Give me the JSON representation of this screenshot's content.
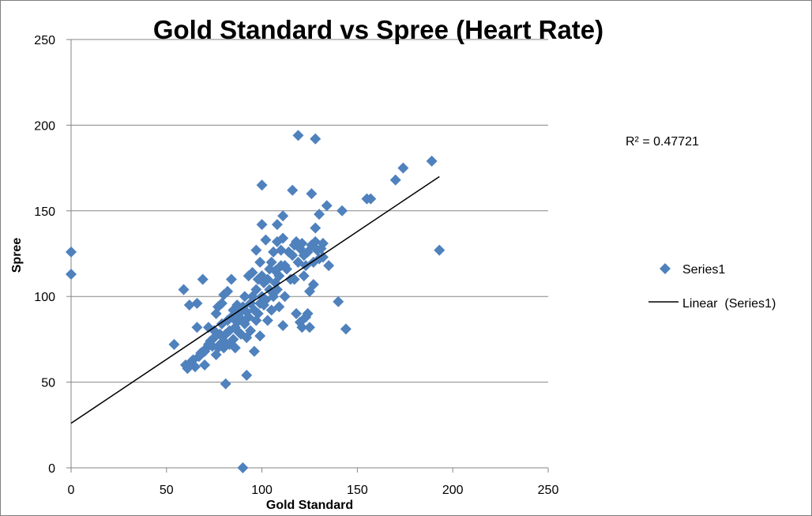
{
  "colors": {
    "point": "#4F81BD",
    "grid": "#868686",
    "axis": "#868686",
    "trendline": "#000000"
  },
  "chart_data": {
    "type": "scatter",
    "title": "Gold Standard vs Spree (Heart Rate)",
    "xlabel": "Gold Standard",
    "ylabel": "Spree",
    "xlim": [
      0,
      250
    ],
    "ylim": [
      0,
      250
    ],
    "xticks": [
      0,
      50,
      100,
      150,
      200,
      250
    ],
    "yticks": [
      0,
      50,
      100,
      150,
      200,
      250
    ],
    "grid": "horizontal-major",
    "legend_position": "right",
    "legend": [
      {
        "name": "Series1",
        "marker": "diamond"
      },
      {
        "name": "Linear  (Series1)",
        "marker": "line"
      }
    ],
    "r_squared_label": "R² = 0.47721",
    "trendline": {
      "type": "linear",
      "x": [
        0,
        193
      ],
      "y": [
        26,
        170
      ]
    },
    "series": [
      {
        "name": "Series1",
        "points": [
          [
            0,
            126
          ],
          [
            0,
            113
          ],
          [
            54,
            72
          ],
          [
            59,
            104
          ],
          [
            60,
            60
          ],
          [
            61,
            58
          ],
          [
            62,
            95
          ],
          [
            63,
            62
          ],
          [
            64,
            63
          ],
          [
            65,
            59
          ],
          [
            66,
            82
          ],
          [
            66,
            96
          ],
          [
            67,
            65
          ],
          [
            68,
            67
          ],
          [
            69,
            110
          ],
          [
            70,
            60
          ],
          [
            70,
            68
          ],
          [
            71,
            70
          ],
          [
            72,
            72
          ],
          [
            72,
            82
          ],
          [
            73,
            74
          ],
          [
            74,
            71
          ],
          [
            75,
            76
          ],
          [
            75,
            80
          ],
          [
            76,
            90
          ],
          [
            76,
            66
          ],
          [
            77,
            94
          ],
          [
            77,
            70
          ],
          [
            78,
            78
          ],
          [
            78,
            72
          ],
          [
            79,
            84
          ],
          [
            79,
            96
          ],
          [
            80,
            74
          ],
          [
            80,
            101
          ],
          [
            80,
            70
          ],
          [
            81,
            49
          ],
          [
            81,
            78
          ],
          [
            82,
            86
          ],
          [
            82,
            103
          ],
          [
            83,
            72
          ],
          [
            83,
            80
          ],
          [
            84,
            110
          ],
          [
            84,
            88
          ],
          [
            85,
            75
          ],
          [
            85,
            92
          ],
          [
            86,
            82
          ],
          [
            86,
            70
          ],
          [
            87,
            85
          ],
          [
            87,
            95
          ],
          [
            88,
            90
          ],
          [
            88,
            79
          ],
          [
            89,
            78
          ],
          [
            89,
            87
          ],
          [
            90,
            94
          ],
          [
            90,
            0
          ],
          [
            91,
            84
          ],
          [
            91,
            100
          ],
          [
            92,
            54
          ],
          [
            92,
            76
          ],
          [
            92,
            91
          ],
          [
            93,
            88
          ],
          [
            93,
            112
          ],
          [
            94,
            96
          ],
          [
            94,
            80
          ],
          [
            95,
            100
          ],
          [
            95,
            114
          ],
          [
            96,
            92
          ],
          [
            96,
            68
          ],
          [
            97,
            104
          ],
          [
            97,
            127
          ],
          [
            97,
            86
          ],
          [
            98,
            110
          ],
          [
            98,
            90
          ],
          [
            99,
            96
          ],
          [
            99,
            77
          ],
          [
            99,
            120
          ],
          [
            100,
            100
          ],
          [
            100,
            165
          ],
          [
            100,
            112
          ],
          [
            100,
            142
          ],
          [
            101,
            108
          ],
          [
            101,
            95
          ],
          [
            102,
            98
          ],
          [
            102,
            133
          ],
          [
            103,
            110
          ],
          [
            103,
            86
          ],
          [
            104,
            116
          ],
          [
            104,
            104
          ],
          [
            105,
            120
          ],
          [
            105,
            92
          ],
          [
            106,
            100
          ],
          [
            106,
            126
          ],
          [
            107,
            115
          ],
          [
            107,
            108
          ],
          [
            108,
            104
          ],
          [
            108,
            132
          ],
          [
            108,
            142
          ],
          [
            109,
            112
          ],
          [
            109,
            94
          ],
          [
            110,
            127
          ],
          [
            110,
            118
          ],
          [
            111,
            83
          ],
          [
            111,
            134
          ],
          [
            111,
            147
          ],
          [
            112,
            100
          ],
          [
            112,
            118
          ],
          [
            113,
            116
          ],
          [
            114,
            126
          ],
          [
            115,
            110
          ],
          [
            116,
            162
          ],
          [
            116,
            124
          ],
          [
            117,
            130
          ],
          [
            117,
            110
          ],
          [
            118,
            132
          ],
          [
            118,
            90
          ],
          [
            119,
            194
          ],
          [
            119,
            120
          ],
          [
            120,
            128
          ],
          [
            120,
            85
          ],
          [
            121,
            82
          ],
          [
            121,
            131
          ],
          [
            122,
            112
          ],
          [
            122,
            124
          ],
          [
            123,
            118
          ],
          [
            123,
            88
          ],
          [
            124,
            126
          ],
          [
            124,
            90
          ],
          [
            125,
            82
          ],
          [
            125,
            103
          ],
          [
            126,
            160
          ],
          [
            126,
            130
          ],
          [
            127,
            107
          ],
          [
            127,
            120
          ],
          [
            128,
            192
          ],
          [
            128,
            132
          ],
          [
            128,
            140
          ],
          [
            129,
            127
          ],
          [
            130,
            148
          ],
          [
            130,
            122
          ],
          [
            131,
            128
          ],
          [
            132,
            131
          ],
          [
            132,
            123
          ],
          [
            134,
            153
          ],
          [
            135,
            118
          ],
          [
            140,
            97
          ],
          [
            142,
            150
          ],
          [
            144,
            81
          ],
          [
            155,
            157
          ],
          [
            157,
            157
          ],
          [
            170,
            168
          ],
          [
            174,
            175
          ],
          [
            189,
            179
          ],
          [
            193,
            127
          ]
        ]
      }
    ]
  }
}
